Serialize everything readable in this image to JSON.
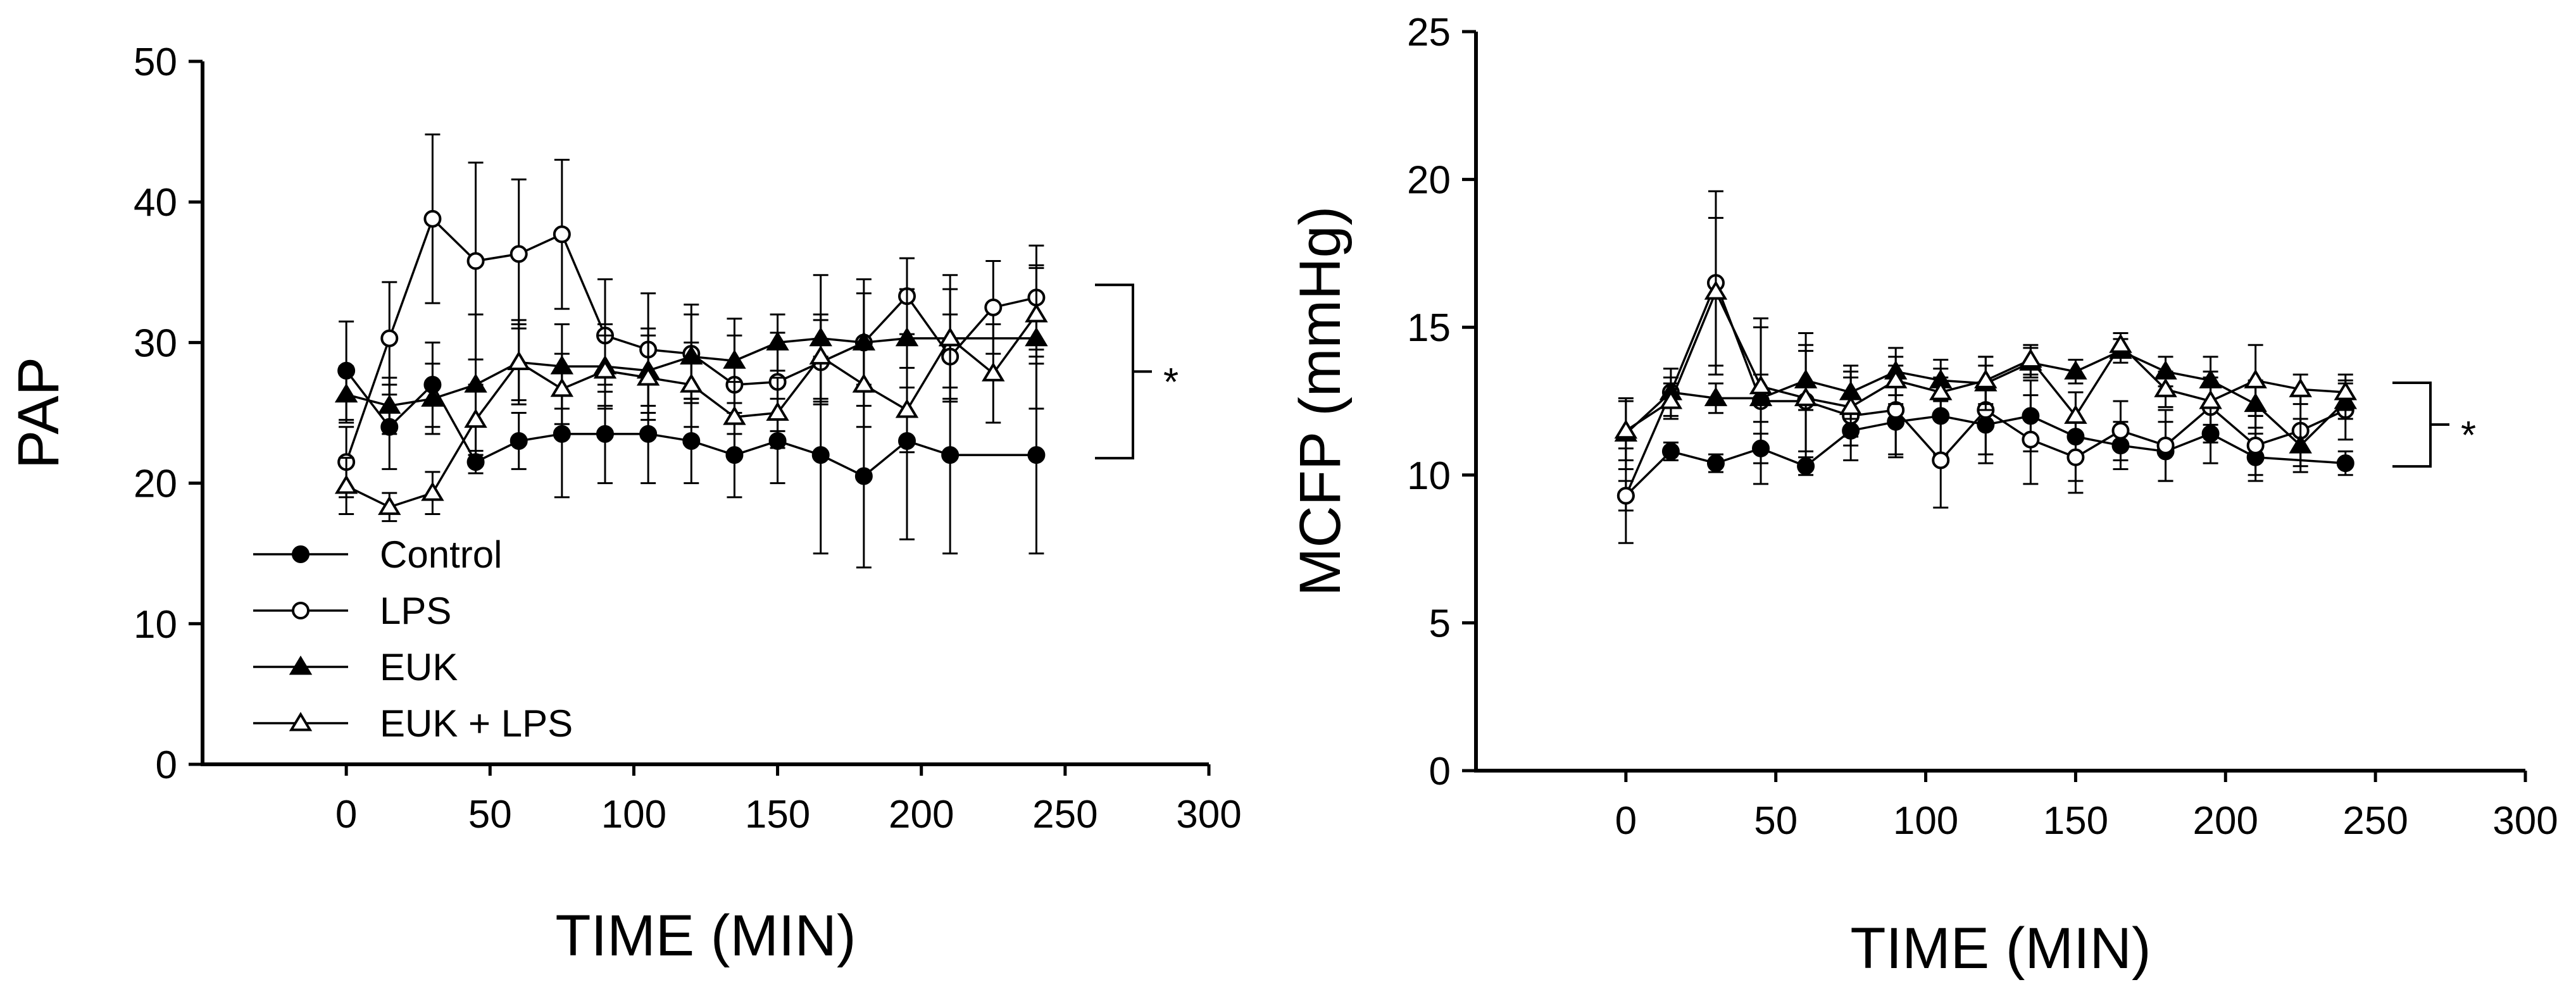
{
  "chart_data": [
    {
      "id": "pap",
      "type": "line",
      "title": "",
      "xlabel": "TIME (MIN)",
      "ylabel": "PAP",
      "xlim": [
        -50,
        300
      ],
      "ylim": [
        0,
        50
      ],
      "xticks": [
        0,
        50,
        100,
        150,
        200,
        250,
        300
      ],
      "yticks": [
        0,
        10,
        20,
        30,
        40,
        50
      ],
      "grid": false,
      "legend_position": "bottom-left",
      "series": [
        {
          "name": "Control",
          "marker": "filled-circle",
          "x": [
            0,
            15,
            30,
            45,
            60,
            75,
            90,
            105,
            120,
            135,
            150,
            165,
            180,
            195,
            210,
            240
          ],
          "y": [
            28.0,
            24.0,
            27.0,
            21.5,
            23.0,
            23.5,
            23.5,
            23.5,
            23.0,
            22.0,
            23.0,
            22.0,
            20.5,
            23.0,
            22.0,
            22.0
          ],
          "err": [
            3.5,
            3,
            3,
            0.8,
            2,
            4.5,
            3.5,
            3.5,
            3,
            3,
            3,
            7,
            6.5,
            7,
            7,
            7
          ]
        },
        {
          "name": "LPS",
          "marker": "open-circle",
          "x": [
            0,
            15,
            30,
            45,
            60,
            75,
            90,
            105,
            120,
            135,
            150,
            165,
            180,
            195,
            210,
            225,
            240
          ],
          "y": [
            21.5,
            30.3,
            38.8,
            35.8,
            36.3,
            37.7,
            30.5,
            29.5,
            29.2,
            27.0,
            27.2,
            28.6,
            30.0,
            33.3,
            29.0,
            32.5,
            33.2
          ],
          "err": [
            2.5,
            4,
            6,
            7,
            5.3,
            5.3,
            4,
            4,
            3.5,
            3.5,
            3.5,
            3,
            4.5,
            2.7,
            3,
            3.3,
            3.7
          ]
        },
        {
          "name": "EUK",
          "marker": "filled-triangle",
          "x": [
            0,
            15,
            30,
            45,
            60,
            75,
            90,
            105,
            120,
            135,
            150,
            165,
            180,
            195,
            210,
            240
          ],
          "y": [
            26.3,
            25.5,
            26.0,
            27.0,
            28.6,
            28.3,
            28.3,
            28.0,
            29.0,
            28.7,
            30.0,
            30.3,
            30.0,
            30.3,
            30.3,
            30.3
          ],
          "err": [
            2,
            2,
            2.5,
            5,
            3,
            3,
            3,
            3,
            3,
            3,
            2,
            4.5,
            3.5,
            3.5,
            4.5,
            5
          ]
        },
        {
          "name": "EUK + LPS",
          "marker": "open-triangle",
          "x": [
            0,
            15,
            30,
            45,
            60,
            75,
            90,
            105,
            120,
            135,
            150,
            165,
            180,
            195,
            210,
            225,
            240
          ],
          "y": [
            19.8,
            18.3,
            19.3,
            24.5,
            28.6,
            26.7,
            28.0,
            27.5,
            27.0,
            24.7,
            25.0,
            29.0,
            27.0,
            25.2,
            30.3,
            27.8,
            32.0
          ],
          "err": [
            2,
            1,
            1.5,
            2.5,
            2.7,
            2.5,
            2.5,
            3,
            3,
            2.5,
            2.5,
            3,
            3,
            3,
            3.5,
            3.5,
            3.5
          ]
        }
      ],
      "bracket_label": "*"
    },
    {
      "id": "mcfp",
      "type": "line",
      "title": "",
      "xlabel": "TIME (MIN)",
      "ylabel": "MCFP (mmHg)",
      "xlim": [
        -50,
        300
      ],
      "ylim": [
        0,
        25
      ],
      "xticks": [
        0,
        50,
        100,
        150,
        200,
        250,
        300
      ],
      "yticks": [
        0,
        5,
        10,
        15,
        20,
        25
      ],
      "grid": false,
      "series": [
        {
          "name": "Control",
          "marker": "filled-circle",
          "x": [
            0,
            15,
            30,
            45,
            60,
            75,
            90,
            105,
            120,
            135,
            150,
            165,
            180,
            195,
            210,
            240
          ],
          "y": [
            9.3,
            10.8,
            10.4,
            10.9,
            10.3,
            11.5,
            11.8,
            12.0,
            11.7,
            12.0,
            11.3,
            11.0,
            10.8,
            11.4,
            10.6,
            10.4
          ],
          "err": [
            0.5,
            0.3,
            0.3,
            0.5,
            0.3,
            0.5,
            1.2,
            1.3,
            1.3,
            1.2,
            1.5,
            0.8,
            1.0,
            1.0,
            0.8,
            0.4
          ]
        },
        {
          "name": "LPS",
          "marker": "open-circle",
          "x": [
            0,
            15,
            30,
            45,
            60,
            75,
            90,
            105,
            120,
            135,
            150,
            165,
            180,
            195,
            210,
            225,
            240
          ],
          "y": [
            9.3,
            12.8,
            16.5,
            12.5,
            12.5,
            12.0,
            12.2,
            10.5,
            12.2,
            11.2,
            10.6,
            11.5,
            11.0,
            12.3,
            11.0,
            11.5,
            12.2
          ],
          "err": [
            1.6,
            0.8,
            3.1,
            2.8,
            2.3,
            1.5,
            1.5,
            1.6,
            1.5,
            1.5,
            1.2,
            1.0,
            1.2,
            1.2,
            1.0,
            1.2,
            1.0
          ]
        },
        {
          "name": "EUK",
          "marker": "filled-triangle",
          "x": [
            0,
            15,
            30,
            45,
            60,
            75,
            90,
            105,
            120,
            135,
            150,
            165,
            180,
            195,
            210,
            225,
            240
          ],
          "y": [
            11.4,
            12.8,
            12.6,
            12.6,
            13.2,
            12.8,
            13.5,
            13.2,
            13.1,
            13.8,
            13.5,
            14.2,
            13.5,
            13.2,
            12.4,
            11.0,
            12.5
          ],
          "err": [
            1.2,
            0.5,
            0.5,
            0.8,
            1.0,
            0.9,
            0.8,
            0.7,
            0.9,
            0.5,
            0.4,
            0.4,
            0.5,
            0.8,
            0.8,
            0.9,
            0.6
          ]
        },
        {
          "name": "EUK + LPS",
          "marker": "open-triangle",
          "x": [
            0,
            15,
            30,
            45,
            60,
            75,
            90,
            105,
            120,
            135,
            150,
            165,
            180,
            195,
            210,
            225,
            240
          ],
          "y": [
            11.5,
            12.5,
            16.2,
            13.0,
            12.6,
            12.3,
            13.2,
            12.8,
            13.2,
            13.9,
            12.0,
            14.4,
            12.9,
            12.5,
            13.2,
            12.9,
            12.8
          ],
          "err": [
            1.0,
            0.6,
            2.5,
            2.0,
            1.8,
            1.0,
            0.8,
            0.8,
            0.8,
            0.5,
            0.8,
            0.4,
            0.6,
            0.8,
            1.2,
            0.5,
            0.6
          ]
        }
      ],
      "bracket_label": "*"
    }
  ]
}
